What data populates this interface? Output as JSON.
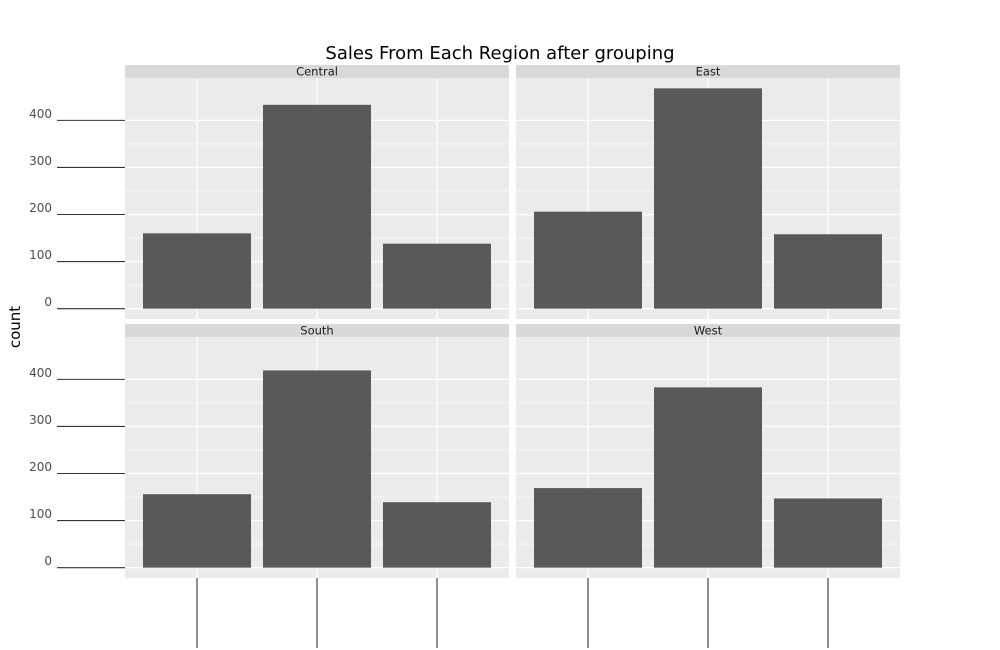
{
  "chart_data": {
    "type": "bar",
    "title": "Sales From Each Region after grouping",
    "xlabel": "",
    "ylabel": "count",
    "facet_by": "Region",
    "layout": {
      "rows": 2,
      "cols": 2
    },
    "categories": [
      "",
      "",
      ""
    ],
    "yticks": [
      0,
      100,
      200,
      300,
      400
    ],
    "ylim": [
      -22,
      490
    ],
    "grid": true,
    "colors": {
      "bar": "#595959",
      "panel_bg": "#ebebeb",
      "strip_bg": "#d9d9d9",
      "grid_major": "#ffffff",
      "tick": "#333333"
    },
    "panels": [
      {
        "name": "Central",
        "values": [
          160,
          433,
          138
        ]
      },
      {
        "name": "East",
        "values": [
          206,
          468,
          158
        ]
      },
      {
        "name": "South",
        "values": [
          156,
          419,
          139
        ]
      },
      {
        "name": "West",
        "values": [
          169,
          383,
          147
        ]
      }
    ]
  }
}
